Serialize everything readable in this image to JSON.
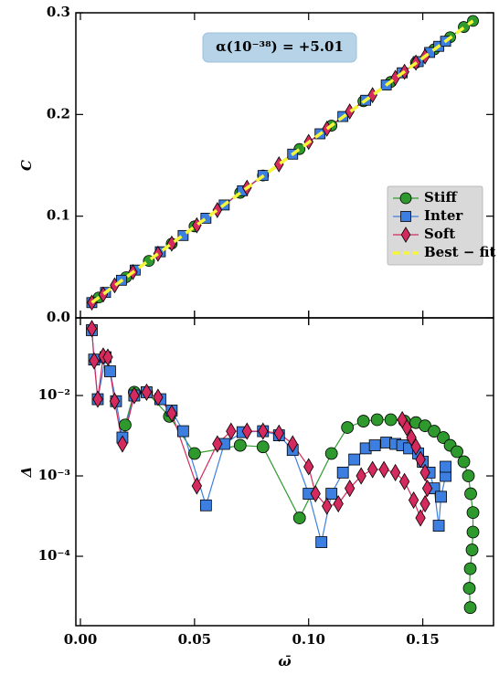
{
  "chart_data": [
    {
      "type": "scatter",
      "ylabel": "C",
      "annotation": "α(10⁻³⁸) = +5.01",
      "legend": "center right",
      "xlim": [
        -0.002,
        0.181
      ],
      "ylim": [
        0,
        0.3
      ],
      "yticks": [
        {
          "value": 0,
          "label": "0.0"
        },
        0.1,
        0.2,
        0.3
      ],
      "series": [
        {
          "name": "Stiff",
          "color": "#2e9a2e",
          "marker": "circle",
          "x": [
            0.008,
            0.02,
            0.03,
            0.04,
            0.05,
            0.07,
            0.08,
            0.096,
            0.11,
            0.124,
            0.136,
            0.147,
            0.155,
            0.162,
            0.168,
            0.172
          ],
          "values": [
            0.02,
            0.04,
            0.056,
            0.073,
            0.09,
            0.123,
            0.14,
            0.166,
            0.189,
            0.213,
            0.232,
            0.251,
            0.264,
            0.276,
            0.286,
            0.292
          ]
        },
        {
          "name": "Inter",
          "color": "#3d7fe0",
          "marker": "square",
          "x": [
            0.005,
            0.011,
            0.018,
            0.024,
            0.035,
            0.045,
            0.055,
            0.063,
            0.071,
            0.08,
            0.093,
            0.105,
            0.115,
            0.125,
            0.134,
            0.141,
            0.148,
            0.153,
            0.157,
            0.16
          ],
          "values": [
            0.015,
            0.025,
            0.037,
            0.047,
            0.065,
            0.081,
            0.098,
            0.111,
            0.125,
            0.14,
            0.161,
            0.181,
            0.198,
            0.214,
            0.229,
            0.241,
            0.252,
            0.261,
            0.267,
            0.272
          ]
        },
        {
          "name": "Soft",
          "color": "#d42a5e",
          "marker": "diamond",
          "x": [
            0.005,
            0.01,
            0.015,
            0.023,
            0.034,
            0.04,
            0.051,
            0.06,
            0.073,
            0.087,
            0.1,
            0.108,
            0.118,
            0.128,
            0.138,
            0.142,
            0.147,
            0.151
          ],
          "values": [
            0.015,
            0.023,
            0.032,
            0.045,
            0.063,
            0.073,
            0.091,
            0.106,
            0.128,
            0.151,
            0.173,
            0.186,
            0.203,
            0.219,
            0.236,
            0.242,
            0.251,
            0.257
          ]
        },
        {
          "name": "Best − fit",
          "color": "#f5f53a",
          "style": "dashed",
          "x": [
            0.005,
            0.172
          ],
          "values": [
            0.015,
            0.292
          ]
        }
      ]
    },
    {
      "type": "scatter",
      "ylabel": "Δ",
      "xlabel": "ω̄",
      "log_y": true,
      "xlim": [
        -0.002,
        0.181
      ],
      "ylim": [
        1.37e-05,
        0.0925
      ],
      "xticks": [
        {
          "value": 0,
          "label": "0.00"
        },
        {
          "value": 0.05,
          "label": "0.05"
        },
        {
          "value": 0.1,
          "label": "0.10"
        },
        {
          "value": 0.15,
          "label": "0.15"
        }
      ],
      "yticks": [
        {
          "value": 0.01,
          "label": "10⁻²"
        },
        {
          "value": 0.001,
          "label": "10⁻³"
        },
        {
          "value": 0.0001,
          "label": "10⁻⁴"
        }
      ],
      "series": [
        {
          "name": "Stiff",
          "color": "#2e9a2e",
          "marker": "circle",
          "x": [
            0.0196,
            0.0236,
            0.029,
            0.039,
            0.05,
            0.07,
            0.08,
            0.096,
            0.11,
            0.117,
            0.124,
            0.13,
            0.136,
            0.142,
            0.147,
            0.151,
            0.155,
            0.159,
            0.162,
            0.165,
            0.168,
            0.17,
            0.171,
            0.172,
            0.172,
            0.1716,
            0.1708,
            0.1704,
            0.1708
          ],
          "values": [
            0.0043,
            0.011,
            0.011,
            0.0055,
            0.0019,
            0.0024,
            0.0023,
            0.0003,
            0.0019,
            0.004,
            0.0048,
            0.005,
            0.005,
            0.0048,
            0.0046,
            0.0042,
            0.0036,
            0.003,
            0.0024,
            0.002,
            0.0015,
            0.001,
            0.0006,
            0.00035,
            0.0002,
            0.00012,
            7e-05,
            4e-05,
            2.3e-05
          ]
        },
        {
          "name": "Inter",
          "color": "#3d7fe0",
          "marker": "square",
          "x": [
            0.005,
            0.006,
            0.0076,
            0.011,
            0.013,
            0.0156,
            0.0184,
            0.0236,
            0.029,
            0.035,
            0.04,
            0.045,
            0.055,
            0.063,
            0.071,
            0.08,
            0.087,
            0.093,
            0.1,
            0.1056,
            0.11,
            0.115,
            0.12,
            0.125,
            0.129,
            0.134,
            0.138,
            0.141,
            0.144,
            0.148,
            0.15,
            0.153,
            0.155,
            0.157,
            0.158,
            0.16,
            0.16
          ],
          "values": [
            0.065,
            0.028,
            0.009,
            0.03,
            0.02,
            0.0085,
            0.003,
            0.01,
            0.011,
            0.009,
            0.0065,
            0.0036,
            0.00043,
            0.0025,
            0.0035,
            0.0036,
            0.0032,
            0.0021,
            0.0006,
            0.00015,
            0.0006,
            0.0011,
            0.0016,
            0.0022,
            0.0024,
            0.0026,
            0.0025,
            0.0024,
            0.0022,
            0.0019,
            0.0015,
            0.0011,
            0.0007,
            0.00024,
            0.00055,
            0.001,
            0.0013
          ]
        },
        {
          "name": "Soft",
          "color": "#d42a5e",
          "marker": "diamond",
          "x": [
            0.005,
            0.006,
            0.0076,
            0.01,
            0.012,
            0.015,
            0.0184,
            0.0236,
            0.029,
            0.034,
            0.04,
            0.051,
            0.06,
            0.066,
            0.073,
            0.08,
            0.087,
            0.093,
            0.1,
            0.103,
            0.108,
            0.113,
            0.118,
            0.123,
            0.128,
            0.133,
            0.138,
            0.142,
            0.146,
            0.149,
            0.151,
            0.152,
            0.151,
            0.149,
            0.147,
            0.145,
            0.143,
            0.141
          ],
          "values": [
            0.068,
            0.027,
            0.009,
            0.031,
            0.03,
            0.0085,
            0.0025,
            0.01,
            0.011,
            0.0095,
            0.006,
            0.00075,
            0.0025,
            0.0036,
            0.0036,
            0.0036,
            0.0034,
            0.0025,
            0.0013,
            0.0006,
            0.00042,
            0.00045,
            0.0007,
            0.001,
            0.0012,
            0.0012,
            0.0011,
            0.00085,
            0.0005,
            0.0003,
            0.00045,
            0.0007,
            0.0011,
            0.0016,
            0.0023,
            0.003,
            0.004,
            0.005
          ]
        }
      ]
    }
  ]
}
